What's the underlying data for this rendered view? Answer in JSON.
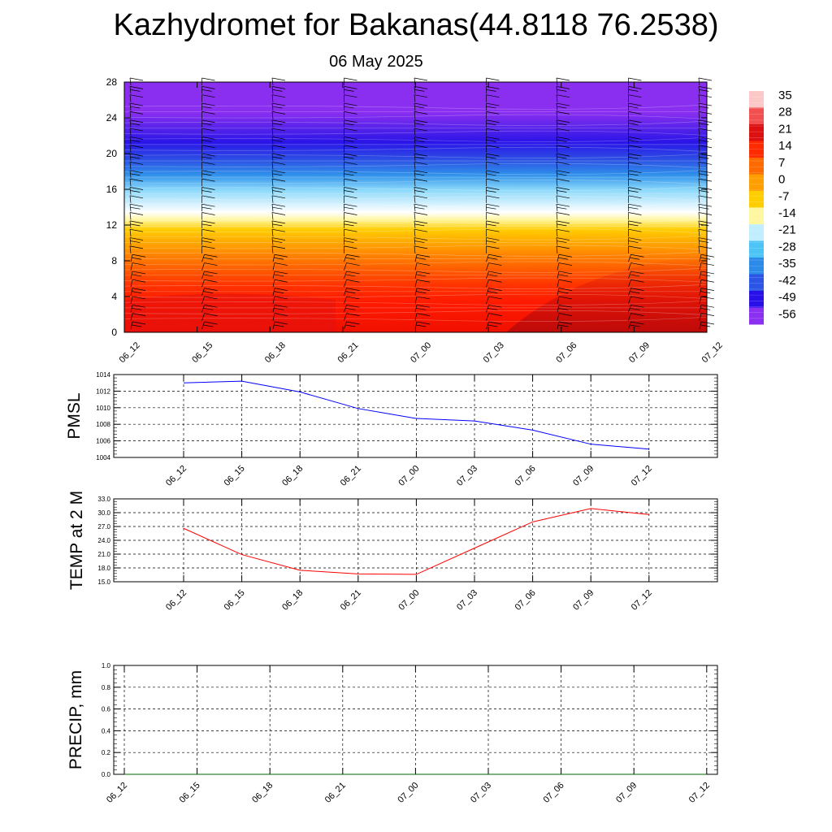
{
  "header": {
    "title": "Kazhydromet for Bakanas(44.8118 76.2538)",
    "subtitle": "06 May 2025"
  },
  "chart_data": [
    {
      "type": "heatmap",
      "title": "",
      "xlabel": "",
      "ylabel": "",
      "x_ticks": [
        "06_12",
        "06_15",
        "06_18",
        "06_21",
        "07_00",
        "07_03",
        "07_06",
        "07_09",
        "07_12"
      ],
      "y_ticks": [
        0,
        4,
        8,
        12,
        16,
        20,
        24,
        28
      ],
      "ylim": [
        0,
        28
      ],
      "colorbar": {
        "labels": [
          "35",
          "28",
          "21",
          "14",
          "7",
          "0",
          "-7",
          "-14",
          "-21",
          "-28",
          "-35",
          "-42",
          "-49",
          "-56"
        ],
        "colors": [
          "#fcc7c7",
          "#f25050",
          "#dc1010",
          "#fe2a00",
          "#ff6a00",
          "#ff9e00",
          "#ffce00",
          "#fff7a0",
          "#bfeeff",
          "#4cc4f5",
          "#2c8ae8",
          "#2a55e6",
          "#2a10e8",
          "#8b30f0"
        ]
      },
      "wind_barbs": true
    },
    {
      "type": "line",
      "ylabel": "PMSL",
      "x": [
        "06_12",
        "06_15",
        "06_18",
        "06_21",
        "07_00",
        "07_03",
        "07_06",
        "07_09",
        "07_12"
      ],
      "y_ticks": [
        1004,
        1006,
        1008,
        1010,
        1012,
        1014
      ],
      "ylim": [
        1004,
        1014
      ],
      "grid": true,
      "series": [
        {
          "color": "#0000ff",
          "values": [
            1013.0,
            1013.2,
            1011.9,
            1009.9,
            1008.7,
            1008.4,
            1007.3,
            1005.6,
            1005.0
          ]
        }
      ]
    },
    {
      "type": "line",
      "ylabel": "TEMP at 2 M",
      "x": [
        "06_12",
        "06_15",
        "06_18",
        "06_21",
        "07_00",
        "07_03",
        "07_06",
        "07_09",
        "07_12"
      ],
      "y_ticks": [
        "15.0",
        "18.0",
        "21.0",
        "24.0",
        "27.0",
        "30.0",
        "33.0"
      ],
      "ylim": [
        15,
        33
      ],
      "grid": true,
      "series": [
        {
          "color": "#ff0000",
          "values": [
            26.6,
            20.9,
            17.5,
            16.7,
            16.6,
            22.3,
            28.0,
            30.9,
            29.6
          ]
        }
      ]
    },
    {
      "type": "line",
      "ylabel": "PRECIP, mm",
      "x": [
        "06_12",
        "06_15",
        "06_18",
        "06_21",
        "07_00",
        "07_03",
        "07_06",
        "07_09",
        "07_12"
      ],
      "y_ticks": [
        "0.0",
        "0.2",
        "0.4",
        "0.6",
        "0.8",
        "1.0"
      ],
      "ylim": [
        0,
        1
      ],
      "grid": true,
      "series": [
        {
          "color": "#006400",
          "values": [
            0,
            0,
            0,
            0,
            0,
            0,
            0,
            0,
            0
          ]
        }
      ]
    }
  ]
}
